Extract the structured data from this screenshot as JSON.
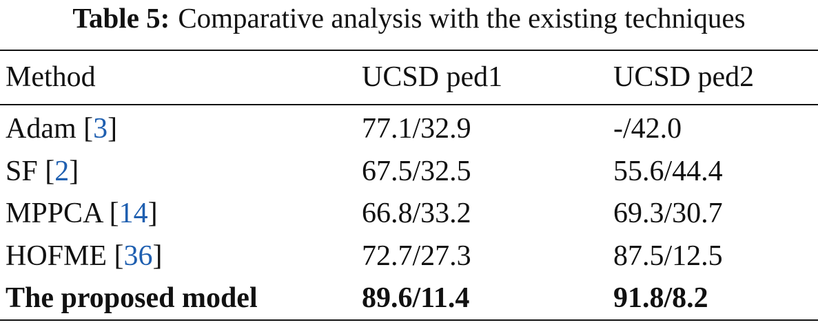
{
  "caption": {
    "label": "Table 5:",
    "text": "Comparative analysis with the existing techniques"
  },
  "table": {
    "header": [
      "Method",
      "UCSD ped1",
      "UCSD ped2"
    ],
    "rows": [
      [
        "Adam [3]",
        "77.1/32.9",
        "-/42.0"
      ],
      [
        "SF [2]",
        "67.5/32.5",
        "55.6/44.4"
      ],
      [
        "MPPCA [14]",
        "66.8/33.2",
        "69.3/30.7"
      ],
      [
        "HOFME [36]",
        "72.7/27.3",
        "87.5/12.5"
      ],
      [
        "The proposed model",
        "89.6/11.4",
        "91.8/8.2"
      ]
    ],
    "bold_row": 4
  }
}
